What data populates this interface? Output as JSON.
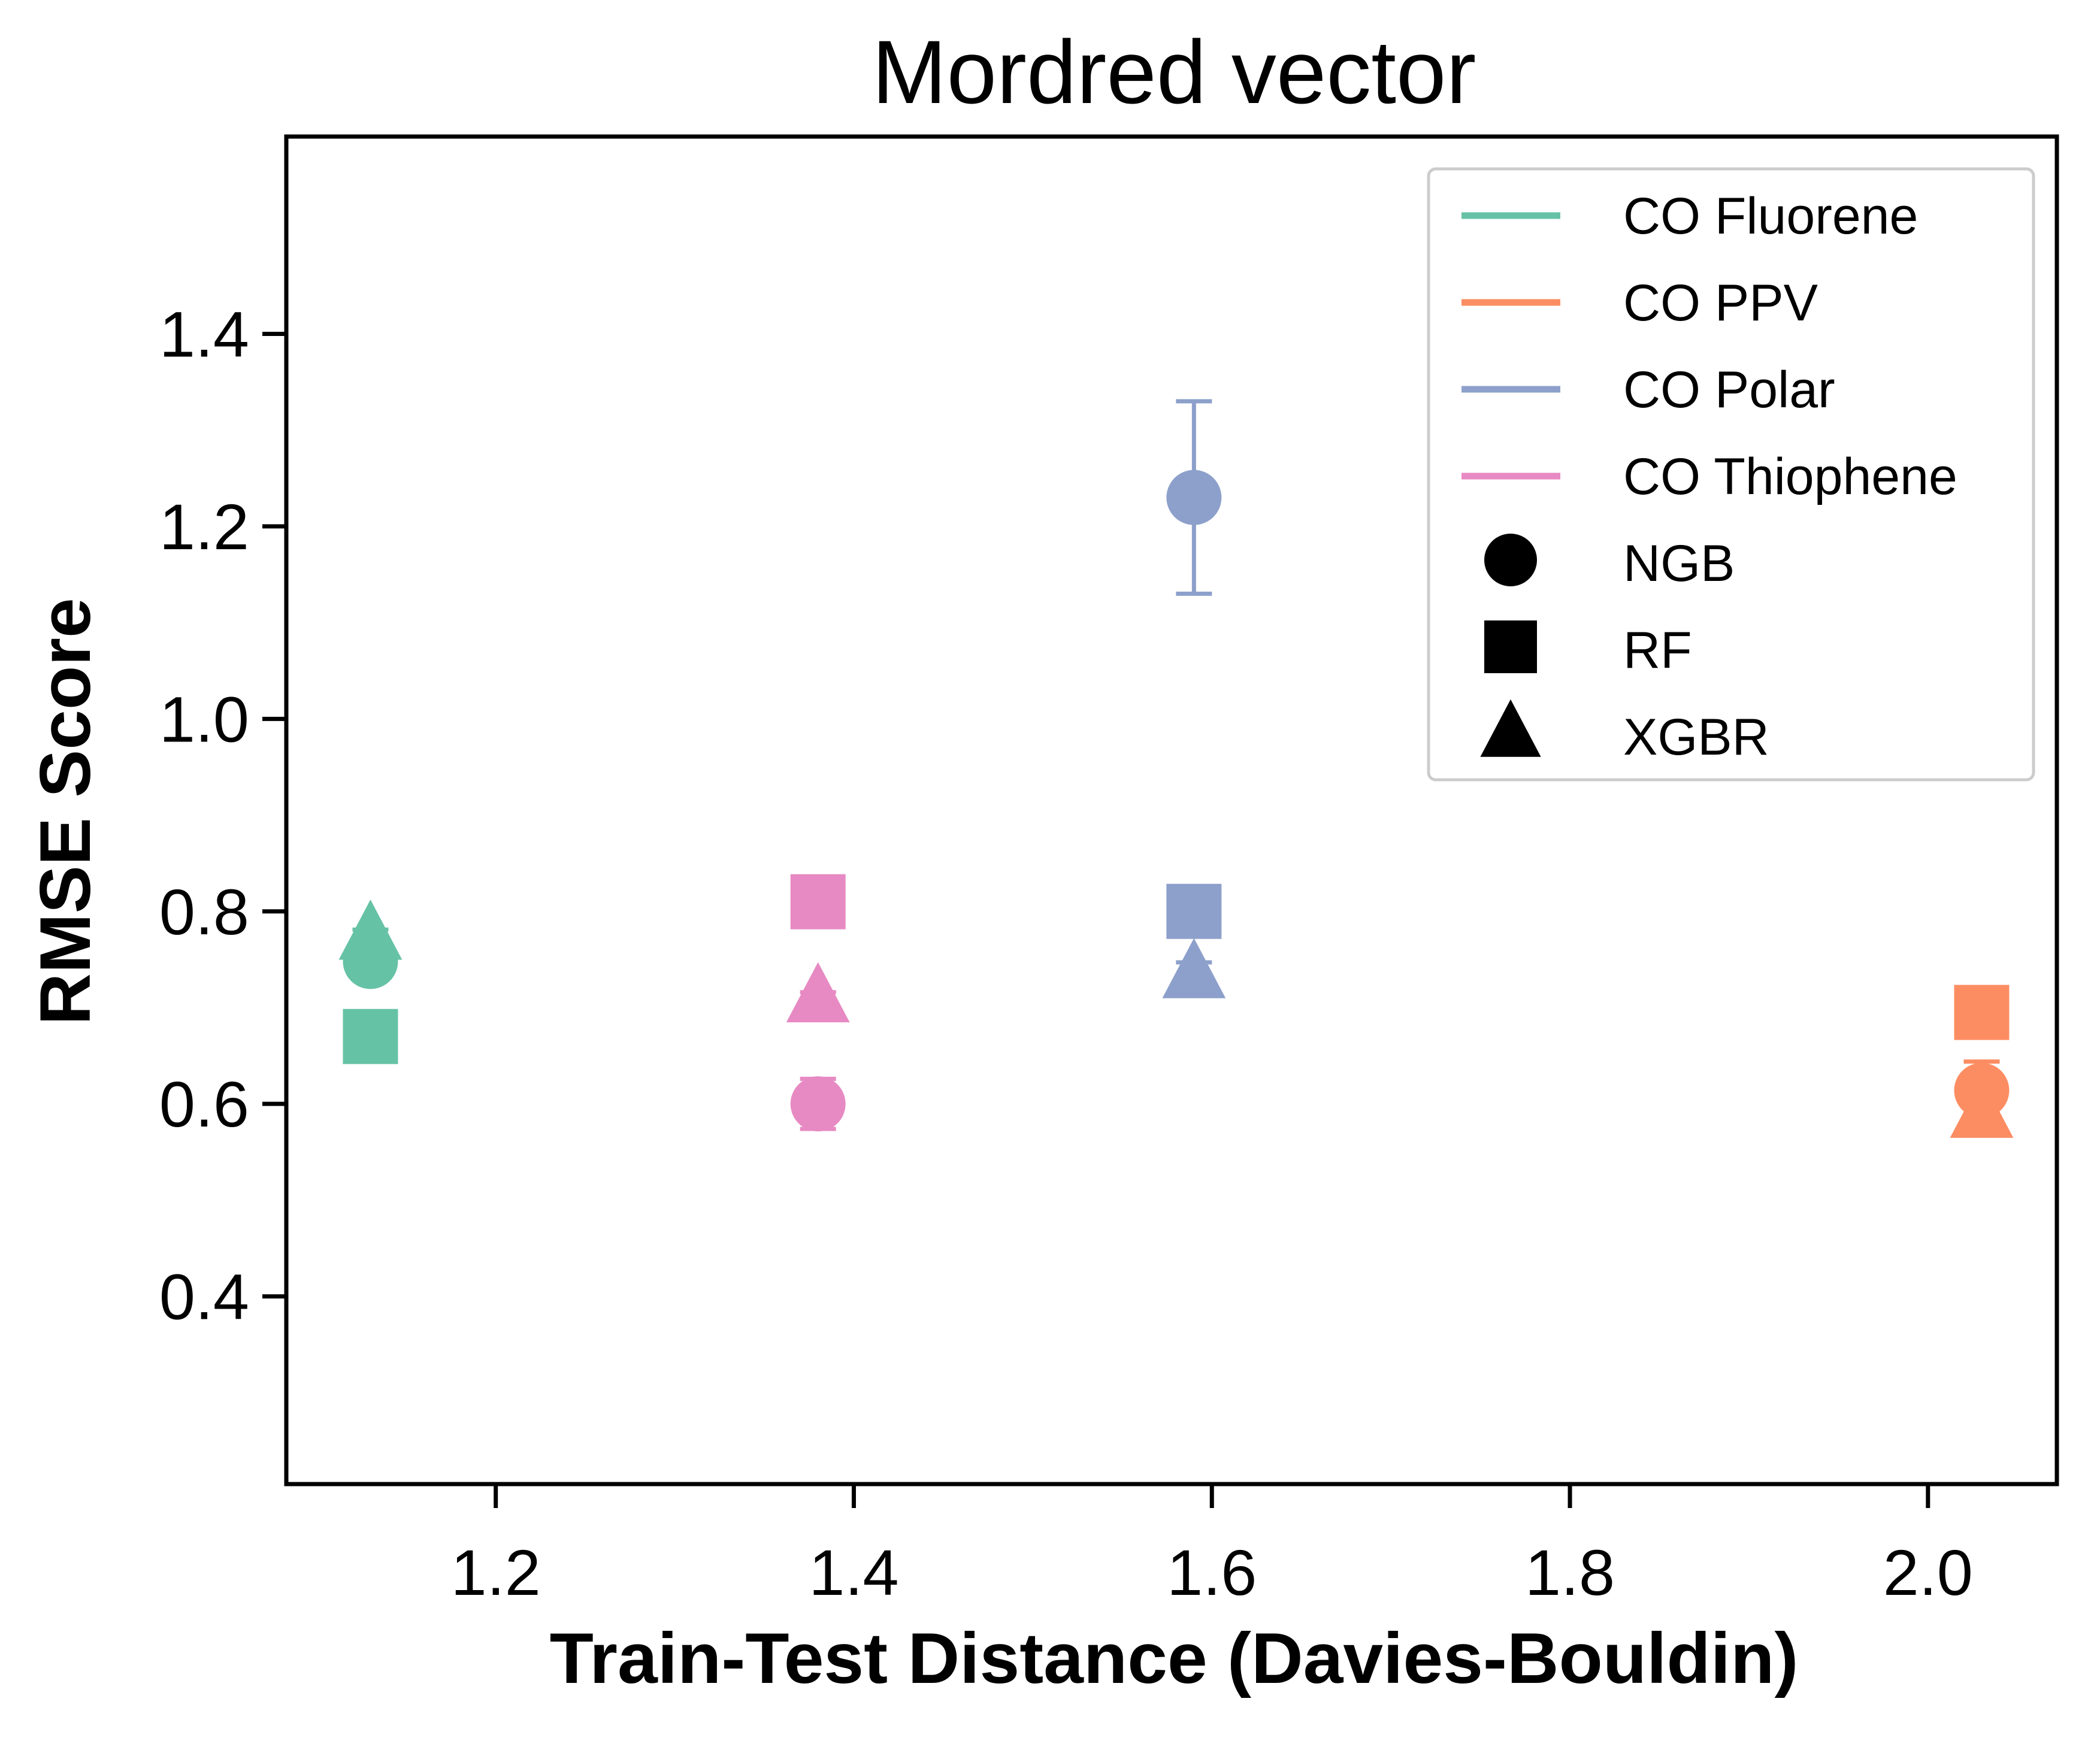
{
  "chart_data": {
    "type": "scatter",
    "title": "Mordred vector",
    "xlabel": "Train-Test Distance (Davies-Bouldin)",
    "ylabel": "RMSE Score",
    "xlim": [
      1.083,
      2.072
    ],
    "ylim": [
      0.205,
      1.605
    ],
    "xticks": [
      "1.2",
      "1.4",
      "1.6",
      "1.8",
      "2.0"
    ],
    "yticks": [
      "0.4",
      "0.6",
      "0.8",
      "1.0",
      "1.2",
      "1.4"
    ],
    "grid": false,
    "legend_position": "top-right",
    "series": [
      {
        "name": "CO Fluorene",
        "color": "#66c2a5",
        "points": [
          {
            "model": "NGB",
            "x": 1.13,
            "y": 0.748,
            "err": 0.008
          },
          {
            "model": "RF",
            "x": 1.13,
            "y": 0.67,
            "err": 0.005
          },
          {
            "model": "XGBR",
            "x": 1.13,
            "y": 0.775,
            "err": 0.006
          }
        ]
      },
      {
        "name": "CO PPV",
        "color": "#fc8d62",
        "points": [
          {
            "model": "NGB",
            "x": 2.03,
            "y": 0.614,
            "err": 0.03
          },
          {
            "model": "RF",
            "x": 2.03,
            "y": 0.695,
            "err": 0.005
          },
          {
            "model": "XGBR",
            "x": 2.03,
            "y": 0.59,
            "err": 0.004
          }
        ]
      },
      {
        "name": "CO Polar",
        "color": "#8da0cb",
        "points": [
          {
            "model": "NGB",
            "x": 1.59,
            "y": 1.23,
            "err": 0.1
          },
          {
            "model": "RF",
            "x": 1.59,
            "y": 0.8,
            "err": 0.005
          },
          {
            "model": "XGBR",
            "x": 1.59,
            "y": 0.735,
            "err": 0.012
          }
        ]
      },
      {
        "name": "CO Thiophene",
        "color": "#e78ac3",
        "points": [
          {
            "model": "NGB",
            "x": 1.38,
            "y": 0.6,
            "err": 0.026
          },
          {
            "model": "RF",
            "x": 1.38,
            "y": 0.81,
            "err": 0.005
          },
          {
            "model": "XGBR",
            "x": 1.38,
            "y": 0.71,
            "err": 0.006
          }
        ]
      }
    ],
    "markers": [
      {
        "model": "NGB",
        "shape": "circle"
      },
      {
        "model": "RF",
        "shape": "square"
      },
      {
        "model": "XGBR",
        "shape": "triangle"
      }
    ]
  }
}
